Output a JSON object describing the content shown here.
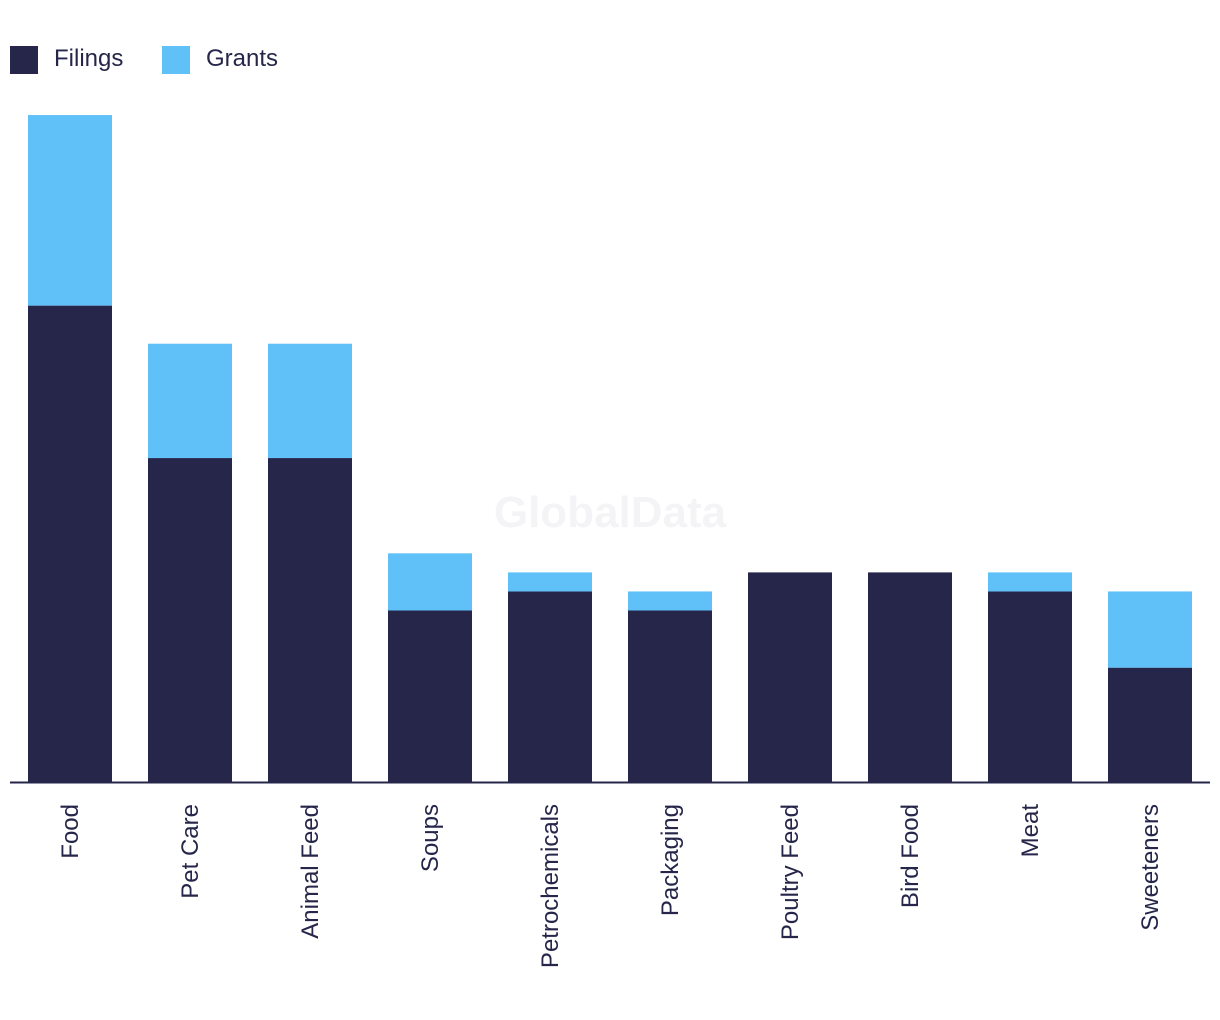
{
  "colors": {
    "filings": "#26264a",
    "grants": "#60c0f8",
    "axis": "#26264a",
    "watermark": "#f4f4f6"
  },
  "legend": {
    "filings_label": "Filings",
    "grants_label": "Grants"
  },
  "watermark": {
    "text": "GlobalData"
  },
  "chart_data": {
    "type": "bar",
    "stacked": true,
    "title": "",
    "xlabel": "",
    "ylabel": "",
    "legend_position": "top-left",
    "grid": false,
    "ylim": [
      0,
      36
    ],
    "categories": [
      "Food",
      "Pet Care",
      "Animal Feed",
      "Soups",
      "Petrochemicals",
      "Packaging",
      "Poultry Feed",
      "Bird Food",
      "Meat",
      "Sweeteners"
    ],
    "series": [
      {
        "name": "Filings",
        "values": [
          25,
          17,
          17,
          9,
          10,
          9,
          11,
          11,
          10,
          6
        ]
      },
      {
        "name": "Grants",
        "values": [
          10,
          6,
          6,
          3,
          1,
          1,
          0,
          0,
          1,
          4
        ]
      }
    ]
  }
}
